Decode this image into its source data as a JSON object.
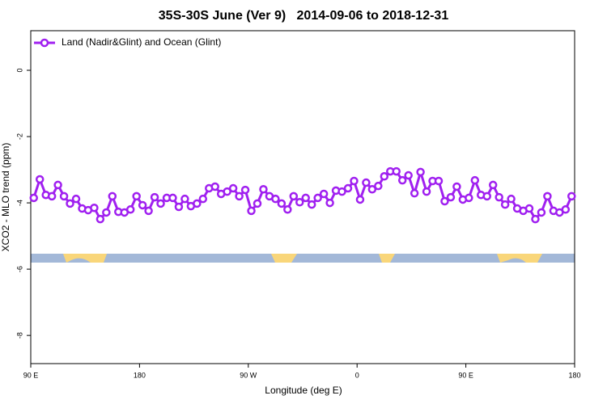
{
  "chart_data": {
    "type": "line",
    "title": "35S-30S June (Ver 9)   2014-09-06 to 2018-12-31",
    "xlabel": "Longitude (deg E)",
    "ylabel": "XCO2 - MLO trend (ppm)",
    "xlim": [
      90,
      540
    ],
    "ylim": [
      1.195,
      -8.85
    ],
    "xticks": [
      {
        "value": 90,
        "label": "90 E"
      },
      180,
      {
        "value": 270,
        "label": "90 W"
      },
      {
        "value": 360,
        "label": "0"
      },
      {
        "value": 450,
        "label": "90 E"
      },
      {
        "value": 540,
        "label": "180"
      }
    ],
    "yticks": [
      0,
      -2,
      -4,
      -6,
      -8
    ],
    "legend": "top-left",
    "series": [
      {
        "name": "Land (Nadir&Glint) and Ocean (Glint)",
        "color": "#a020f0",
        "x": [
          92.5,
          97.5,
          102.5,
          107.5,
          112.5,
          117.5,
          122.5,
          127.5,
          132.5,
          137.5,
          142.5,
          147.5,
          152.5,
          157.5,
          162.5,
          167.5,
          172.5,
          177.5,
          182.5,
          187.5,
          192.5,
          197.5,
          202.5,
          207.5,
          212.5,
          217.5,
          222.5,
          227.5,
          232.5,
          237.5,
          242.5,
          247.5,
          252.5,
          257.5,
          262.5,
          267.5,
          272.5,
          277.5,
          282.5,
          287.5,
          292.5,
          297.5,
          302.5,
          307.5,
          312.5,
          317.5,
          322.5,
          327.5,
          332.5,
          337.5,
          342.5,
          347.5,
          352.5,
          357.5,
          362.5,
          367.5,
          372.5,
          377.5,
          382.5,
          387.5,
          392.5,
          397.5,
          402.5,
          407.5,
          412.5,
          417.5,
          422.5,
          427.5,
          432.5,
          437.5,
          442.5,
          447.5,
          452.5,
          457.5,
          462.5,
          467.5,
          472.5,
          477.5,
          482.5,
          487.5,
          492.5,
          497.5,
          502.5,
          507.5,
          512.5,
          517.5,
          522.5,
          527.5,
          532.5,
          537.5
        ],
        "values": [
          -3.85,
          -3.29,
          -3.76,
          -3.8,
          -3.46,
          -3.8,
          -4.02,
          -3.88,
          -4.17,
          -4.22,
          -4.15,
          -4.49,
          -4.29,
          -3.8,
          -4.27,
          -4.29,
          -4.2,
          -3.8,
          -4.07,
          -4.24,
          -3.83,
          -4.02,
          -3.85,
          -3.85,
          -4.12,
          -3.88,
          -4.1,
          -4.02,
          -3.88,
          -3.56,
          -3.51,
          -3.73,
          -3.66,
          -3.56,
          -3.8,
          -3.61,
          -4.24,
          -4.02,
          -3.59,
          -3.8,
          -3.88,
          -4.02,
          -4.2,
          -3.8,
          -3.98,
          -3.85,
          -4.05,
          -3.85,
          -3.73,
          -4.0,
          -3.63,
          -3.66,
          -3.56,
          -3.34,
          -3.9,
          -3.39,
          -3.59,
          -3.49,
          -3.2,
          -3.05,
          -3.05,
          -3.32,
          -3.17,
          -3.71,
          -3.07,
          -3.66,
          -3.34,
          -3.34,
          -3.95,
          -3.83,
          -3.51,
          -3.9,
          -3.85,
          -3.32,
          -3.76,
          -3.8,
          -3.46,
          -3.83,
          -4.05,
          -3.88,
          -4.17,
          -4.24,
          -4.17,
          -4.49,
          -4.29,
          -3.8,
          -4.24,
          -4.29,
          -4.2,
          -3.8
        ]
      }
    ]
  }
}
